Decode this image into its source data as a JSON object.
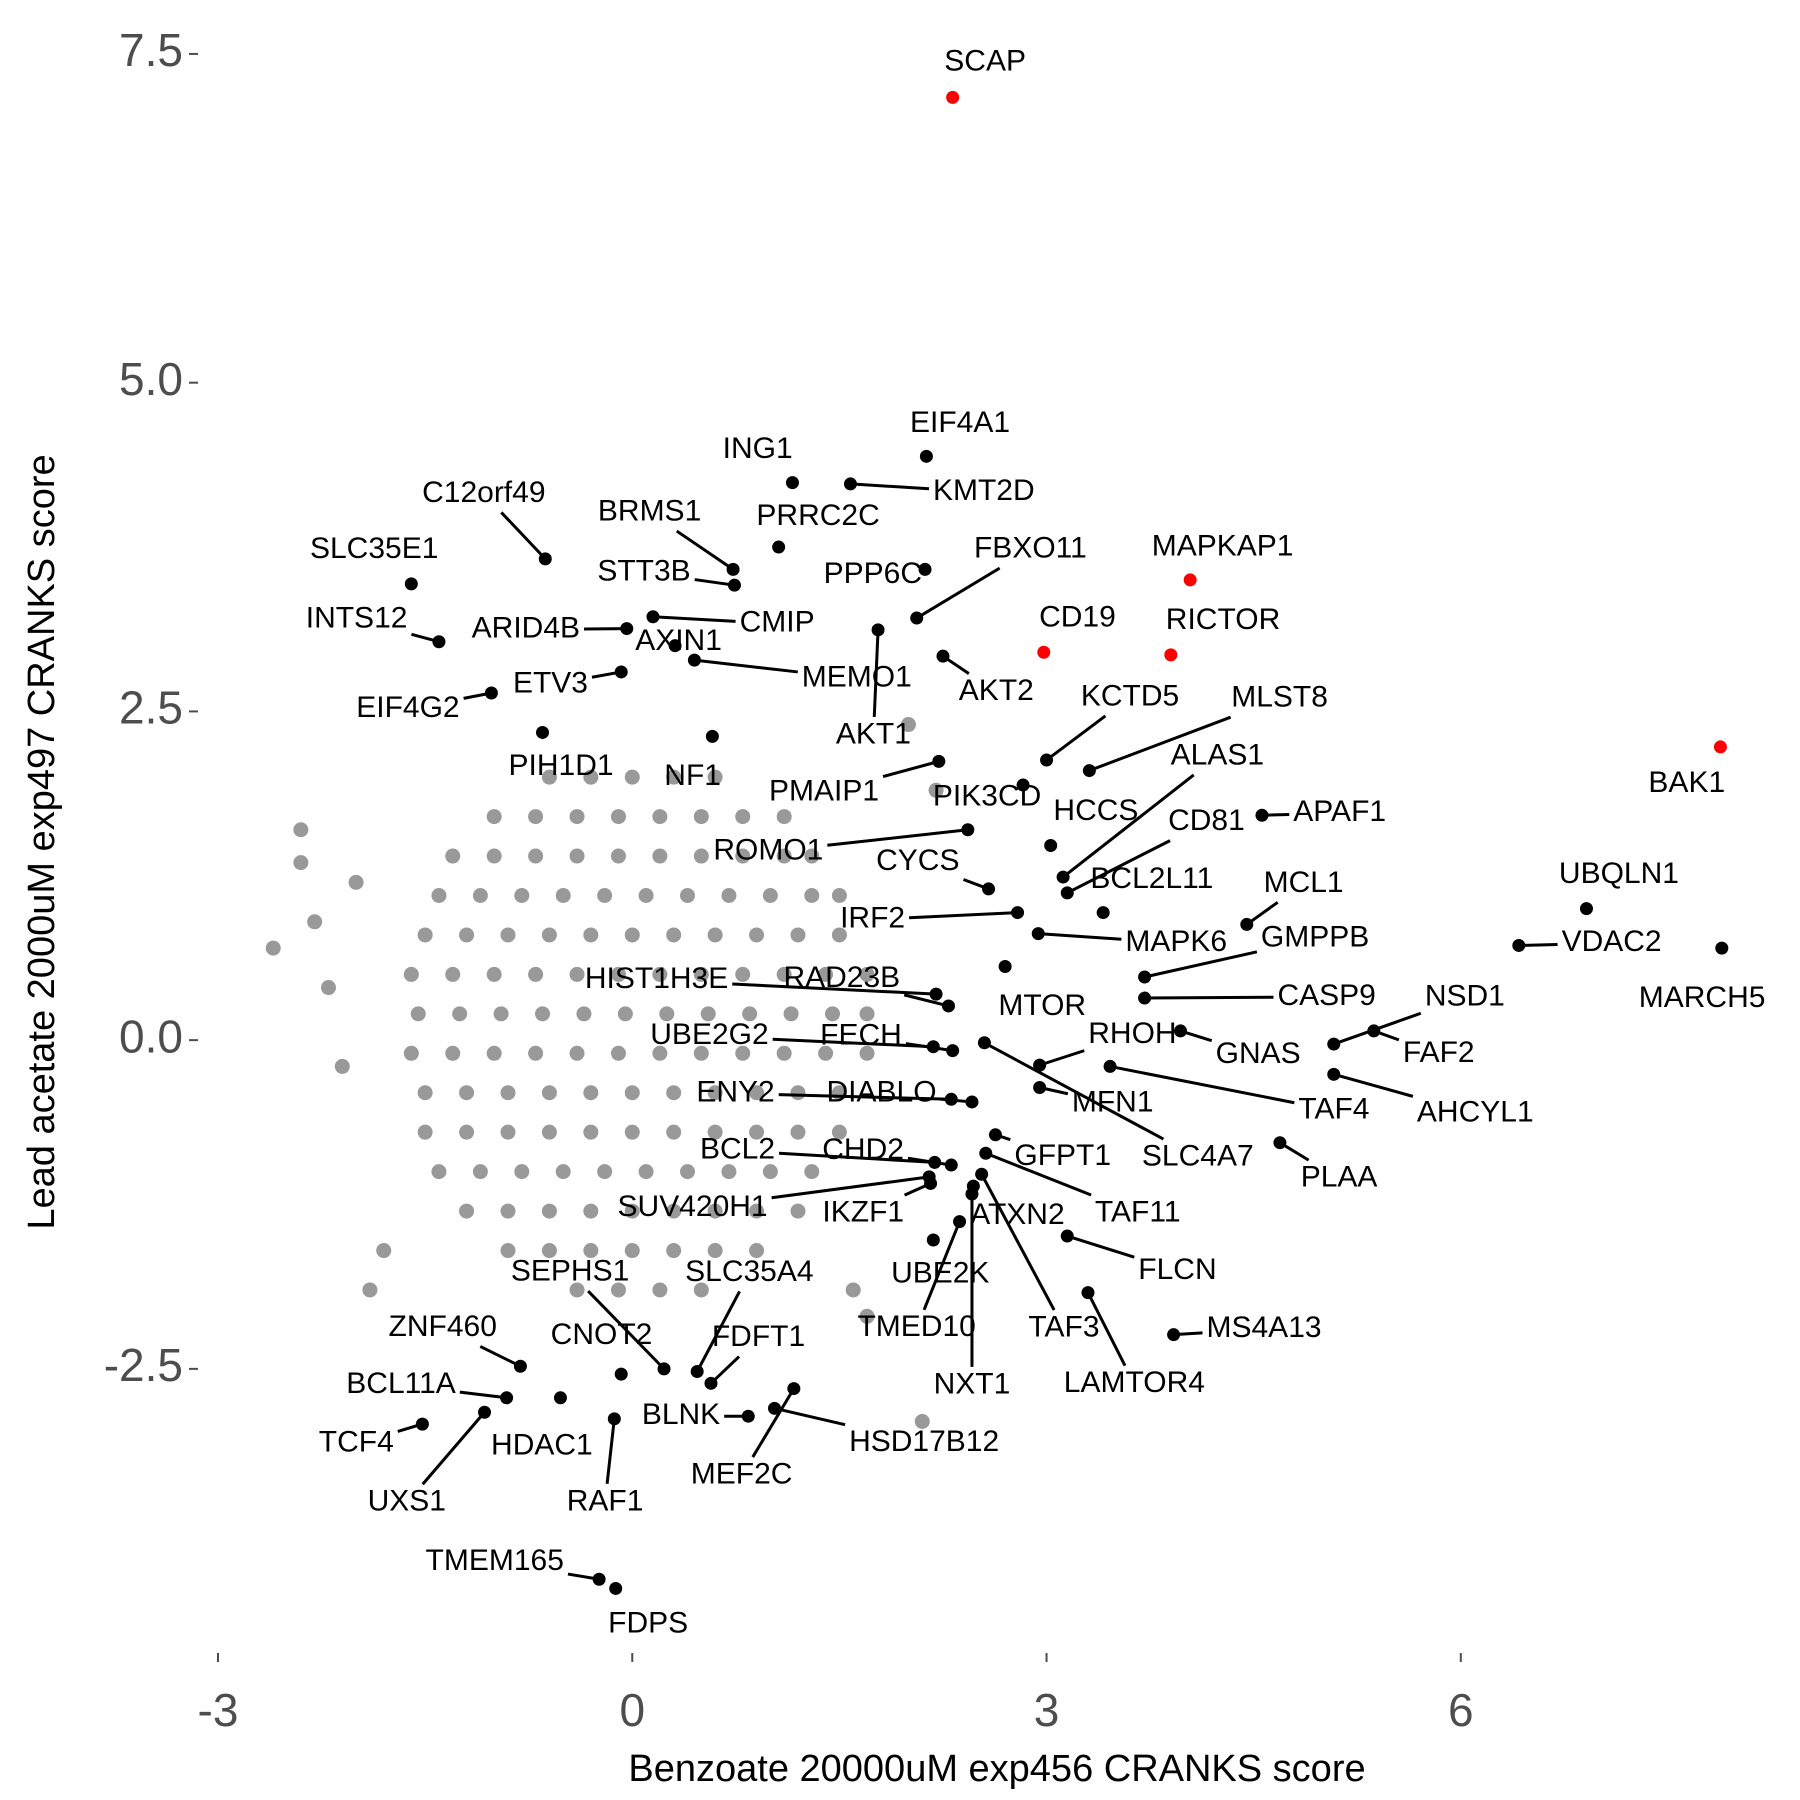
{
  "chart_data": {
    "type": "scatter",
    "x_label": "Benzoate 20000uM exp456 CRANKS score",
    "y_label": "Lead acetate 2000uM exp497 CRANKS score",
    "xlim": [
      -3,
      8
    ],
    "ylim": [
      -4.6,
      7.6
    ],
    "xticks": [
      -3,
      0,
      3,
      6
    ],
    "yticks": [
      -2.5,
      {
        "value": 0,
        "label": "0.0"
      },
      2.5,
      {
        "value": 5,
        "label": "5.0"
      },
      7.5
    ],
    "series": [
      {
        "color": "#999999",
        "x": [
          -0.6,
          -0.3,
          0,
          0.3,
          0.6,
          -1,
          -0.7,
          -0.4,
          -0.1,
          0.2,
          0.5,
          0.8,
          1.1,
          -1.3,
          -1,
          -0.7,
          -0.4,
          -0.1,
          0.2,
          0.5,
          0.8,
          1.1,
          1.3,
          -1.4,
          -1.1,
          -0.8,
          -0.5,
          -0.2,
          0.1,
          0.4,
          0.7,
          1,
          1.3,
          1.5,
          -1.5,
          -1.2,
          -0.9,
          -0.6,
          -0.3,
          0,
          0.3,
          0.6,
          0.9,
          1.2,
          1.5,
          -1.6,
          -1.3,
          -1,
          -0.7,
          -0.4,
          -0.1,
          0.2,
          0.5,
          0.8,
          1.1,
          1.4,
          1.7,
          -1.55,
          -1.25,
          -0.95,
          -0.65,
          -0.35,
          -0.05,
          0.25,
          0.55,
          0.85,
          1.15,
          1.45,
          1.7,
          -1.6,
          -1.3,
          -1,
          -0.7,
          -0.4,
          -0.1,
          0.2,
          0.5,
          0.8,
          1.1,
          1.4,
          1.7,
          -1.5,
          -1.2,
          -0.9,
          -0.6,
          -0.3,
          0,
          0.3,
          0.6,
          0.9,
          1.2,
          1.5,
          -1.5,
          -1.2,
          -0.9,
          -0.6,
          -0.3,
          0,
          0.3,
          0.6,
          0.9,
          1.2,
          1.5,
          -1.4,
          -1.1,
          -0.8,
          -0.5,
          -0.2,
          0.1,
          0.4,
          0.7,
          1,
          1.3,
          -1.2,
          -0.9,
          -0.6,
          -0.3,
          0,
          0.3,
          0.6,
          0.9,
          1.2,
          -0.9,
          -0.6,
          -0.3,
          0,
          0.3,
          0.6,
          0.9,
          -0.4,
          -0.1,
          0.2,
          0.5,
          -2.6,
          -2.4,
          -2.4,
          -2.2,
          -2.1,
          -1.9,
          -1.8,
          -2,
          2,
          1.7,
          2.1,
          1.6,
          -2.3,
          2.2
        ],
        "y": [
          2,
          2,
          2,
          2,
          2,
          1.7,
          1.7,
          1.7,
          1.7,
          1.7,
          1.7,
          1.7,
          1.7,
          1.4,
          1.4,
          1.4,
          1.4,
          1.4,
          1.4,
          1.4,
          1.4,
          1.4,
          1.4,
          1.1,
          1.1,
          1.1,
          1.1,
          1.1,
          1.1,
          1.1,
          1.1,
          1.1,
          1.1,
          1.1,
          0.8,
          0.8,
          0.8,
          0.8,
          0.8,
          0.8,
          0.8,
          0.8,
          0.8,
          0.8,
          0.8,
          0.5,
          0.5,
          0.5,
          0.5,
          0.5,
          0.5,
          0.5,
          0.5,
          0.5,
          0.5,
          0.5,
          0.5,
          0.2,
          0.2,
          0.2,
          0.2,
          0.2,
          0.2,
          0.2,
          0.2,
          0.2,
          0.2,
          0.2,
          0.2,
          -0.1,
          -0.1,
          -0.1,
          -0.1,
          -0.1,
          -0.1,
          -0.1,
          -0.1,
          -0.1,
          -0.1,
          -0.1,
          -0.1,
          -0.4,
          -0.4,
          -0.4,
          -0.4,
          -0.4,
          -0.4,
          -0.4,
          -0.4,
          -0.4,
          -0.4,
          -0.4,
          -0.7,
          -0.7,
          -0.7,
          -0.7,
          -0.7,
          -0.7,
          -0.7,
          -0.7,
          -0.7,
          -0.7,
          -0.7,
          -1,
          -1,
          -1,
          -1,
          -1,
          -1,
          -1,
          -1,
          -1,
          -1,
          -1.3,
          -1.3,
          -1.3,
          -1.3,
          -1.3,
          -1.3,
          -1.3,
          -1.3,
          -1.3,
          -1.6,
          -1.6,
          -1.6,
          -1.6,
          -1.6,
          -1.6,
          -1.6,
          -1.9,
          -1.9,
          -1.9,
          -1.9,
          0.7,
          1.6,
          1.35,
          0.4,
          -0.2,
          -1.9,
          -1.6,
          1.2,
          2.4,
          -2.1,
          -2.9,
          -1.9,
          0.9,
          1.9
        ]
      },
      {
        "color": "#000000",
        "labels": [
          "EIF4A1",
          "KMT2D",
          "ING1",
          "PRRC2C",
          "C12orf49",
          "BRMS1",
          "STT3B",
          "PPP6C",
          "FBXO11",
          "SLC35E1",
          "INTS12",
          "ARID4B",
          "CMIP",
          "AXIN1",
          "MEMO1",
          "AKT2",
          "KCTD5",
          "MLST8",
          "AKT1",
          "ETV3",
          "EIF4G2",
          "HCCS",
          "ALAS1",
          "CD81",
          "BCL2L11",
          "PIH1D1",
          "NF1",
          "PMAIP1",
          "PIK3CD",
          "APAF1",
          "ROMO1",
          "CYCS",
          "MCL1",
          "IRF2",
          "MAPK6",
          "GMPPB",
          "UBQLN1",
          "VDAC2",
          "MARCH5",
          "HIST1H3E",
          "RAD23B",
          "MTOR",
          "CASP9",
          "RHOH",
          "NSD1",
          "FAF2",
          "GNAS",
          "UBE2G2",
          "FECH",
          "TAF4",
          "AHCYL1",
          "MFN1",
          "ENY2",
          "DIABLO",
          "SLC4A7",
          "PLAA",
          "GFPT1",
          "BCL2",
          "CHD2",
          "TAF11",
          "SUV420H1",
          "IKZF1",
          "ATXN2",
          "FLCN",
          "UBE2K",
          "TMED10",
          "TAF3",
          "NXT1",
          "LAMTOR4",
          "MS4A13",
          "SEPHS1",
          "SLC35A4",
          "ZNF460",
          "CNOT2",
          "FDFT1",
          "BCL11A",
          "TCF4",
          "HDAC1",
          "UXS1",
          "RAF1",
          "BLNK",
          "HSD17B12",
          "MEF2C",
          "TMEM165",
          "FDPS"
        ],
        "x": [
          2.13,
          1.58,
          1.16,
          1.06,
          -0.63,
          0.73,
          0.74,
          2.12,
          2.06,
          -1.6,
          -1.4,
          -0.04,
          0.15,
          0.31,
          0.45,
          2.25,
          3.0,
          3.31,
          1.78,
          -0.08,
          -1.02,
          3.03,
          3.12,
          3.15,
          3.41,
          -0.65,
          0.58,
          2.22,
          2.83,
          4.56,
          2.43,
          2.58,
          4.45,
          2.79,
          2.94,
          3.71,
          6.91,
          6.42,
          7.89,
          2.2,
          2.29,
          2.7,
          3.71,
          2.95,
          5.08,
          5.37,
          3.97,
          2.18,
          2.32,
          3.46,
          5.08,
          2.95,
          2.31,
          2.46,
          2.55,
          4.69,
          2.63,
          2.19,
          2.31,
          2.56,
          2.15,
          2.16,
          2.47,
          3.15,
          2.18,
          2.37,
          2.53,
          2.46,
          3.3,
          3.92,
          0.23,
          0.47,
          -0.81,
          -0.08,
          0.57,
          -0.91,
          -1.52,
          -0.52,
          -1.07,
          -0.13,
          0.84,
          1.03,
          1.17,
          -0.24,
          -0.12
        ],
        "y": [
          4.44,
          4.23,
          4.24,
          3.75,
          3.66,
          3.58,
          3.46,
          3.58,
          3.21,
          3.47,
          3.03,
          3.13,
          3.22,
          3.0,
          2.89,
          2.92,
          2.13,
          2.05,
          3.12,
          2.8,
          2.64,
          1.48,
          1.24,
          1.12,
          0.97,
          2.34,
          2.31,
          2.12,
          1.94,
          1.71,
          1.6,
          1.15,
          0.88,
          0.97,
          0.81,
          0.48,
          1.0,
          0.72,
          0.7,
          0.35,
          0.26,
          0.56,
          0.32,
          -0.19,
          -0.03,
          0.07,
          0.07,
          -0.05,
          -0.08,
          -0.2,
          -0.26,
          -0.36,
          -0.45,
          -0.47,
          -0.02,
          -0.78,
          -0.72,
          -0.93,
          -0.95,
          -0.86,
          -1.04,
          -1.09,
          -1.11,
          -1.49,
          -1.52,
          -1.38,
          -1.02,
          -1.17,
          -1.92,
          -2.24,
          -2.5,
          -2.52,
          -2.48,
          -2.54,
          -2.61,
          -2.72,
          -2.92,
          -2.72,
          -2.83,
          -2.88,
          -2.86,
          -2.8,
          -2.65,
          -4.1,
          -4.17
        ]
      },
      {
        "color": "#ff0000",
        "labels": [
          "SCAP",
          "MAPKAP1",
          "RICTOR",
          "CD19",
          "BAK1"
        ],
        "x": [
          2.32,
          4.04,
          3.9,
          2.98,
          7.88
        ],
        "y": [
          7.17,
          3.5,
          2.93,
          2.95,
          2.23
        ]
      }
    ]
  }
}
